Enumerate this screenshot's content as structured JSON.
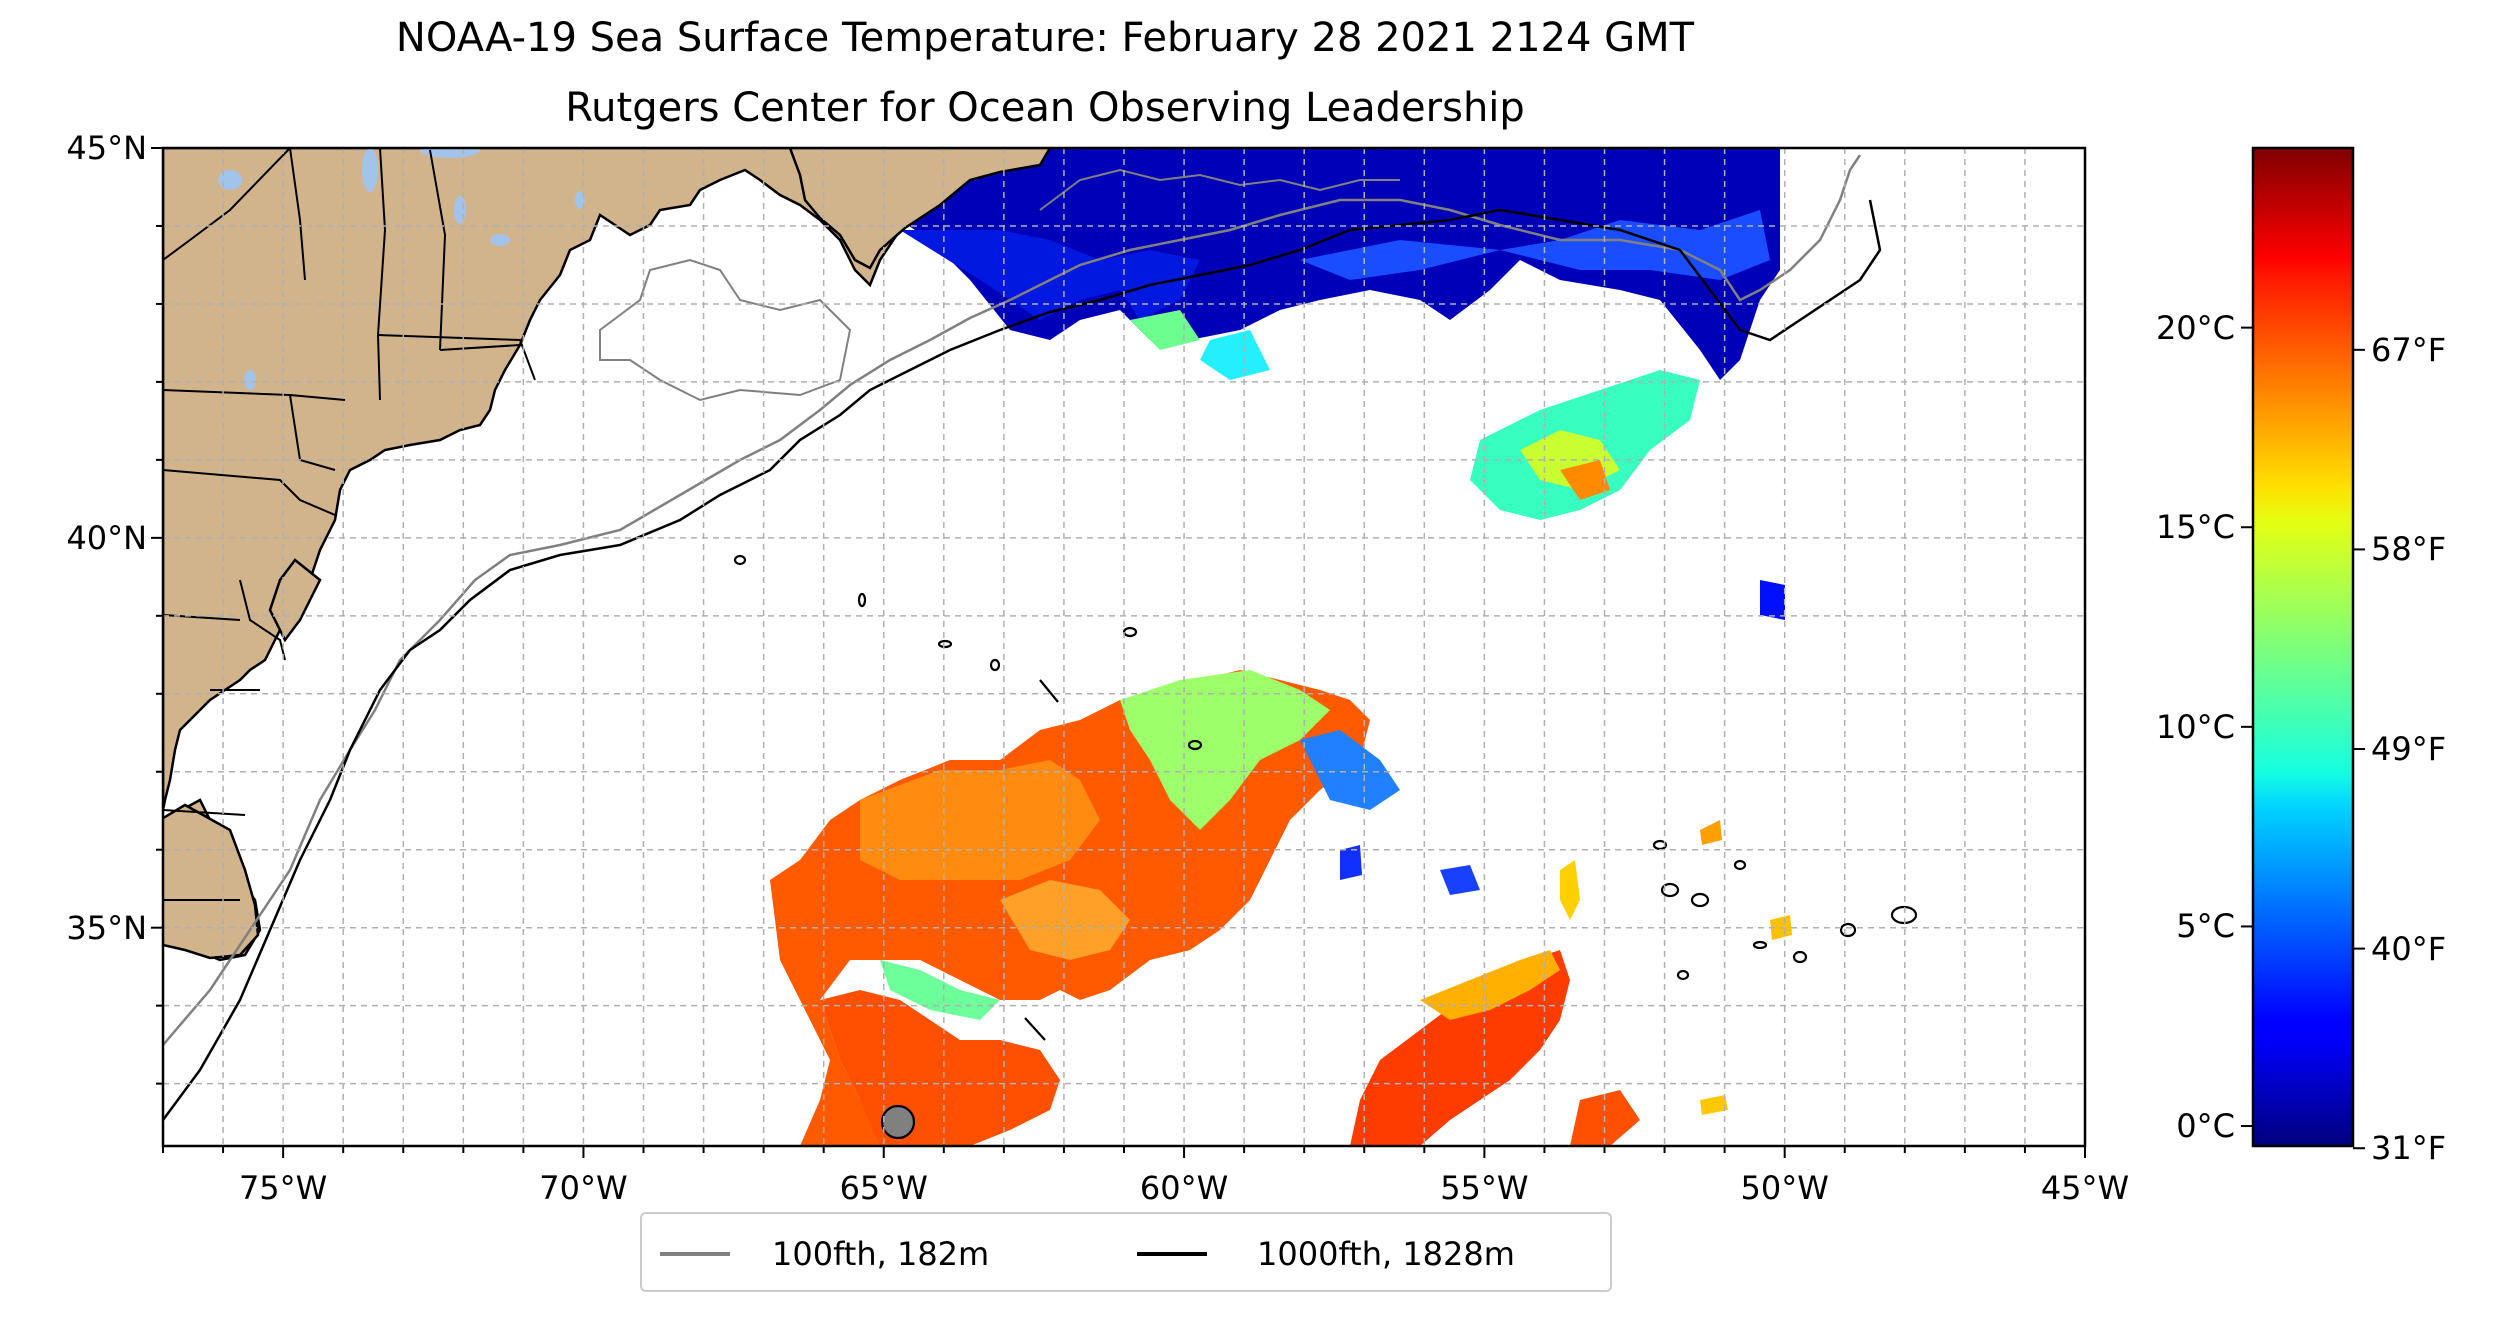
{
  "title_line1": "NOAA-19 Sea Surface Temperature: February 28 2021 2124 GMT",
  "title_line2": "Rutgers Center for Ocean Observing Leadership",
  "colors": {
    "land": "#d2b48c",
    "lakes": "#a3c4ea",
    "grid": "#b0b0b0",
    "isobath_100": "#808080",
    "isobath_1000": "#000000"
  },
  "map": {
    "lon_range": [
      -77,
      -45
    ],
    "lat_range": [
      32.2,
      45
    ],
    "lat_ticks": [
      {
        "value": 45,
        "label": "45°N"
      },
      {
        "value": 40,
        "label": "40°N"
      },
      {
        "value": 35,
        "label": "35°N"
      }
    ],
    "lon_ticks": [
      {
        "value": -75,
        "label": "75°W"
      },
      {
        "value": -70,
        "label": "70°W"
      },
      {
        "value": -65,
        "label": "65°W"
      },
      {
        "value": -60,
        "label": "60°W"
      },
      {
        "value": -55,
        "label": "55°W"
      },
      {
        "value": -50,
        "label": "50°W"
      },
      {
        "value": -45,
        "label": "45°W"
      }
    ]
  },
  "colorbar": {
    "colormap": "jet",
    "range_c": [
      -0.5,
      24.5
    ],
    "celsius_ticks": [
      {
        "value": 0,
        "label": "0°C"
      },
      {
        "value": 5,
        "label": "5°C"
      },
      {
        "value": 10,
        "label": "10°C"
      },
      {
        "value": 15,
        "label": "15°C"
      },
      {
        "value": 20,
        "label": "20°C"
      }
    ],
    "fahrenheit_ticks": [
      {
        "value": 31,
        "label": "31°F"
      },
      {
        "value": 40,
        "label": "40°F"
      },
      {
        "value": 49,
        "label": "49°F"
      },
      {
        "value": 58,
        "label": "58°F"
      },
      {
        "value": 67,
        "label": "67°F"
      }
    ]
  },
  "legend": {
    "item1": "100fth, 182m",
    "item2": "1000fth, 1828m"
  }
}
